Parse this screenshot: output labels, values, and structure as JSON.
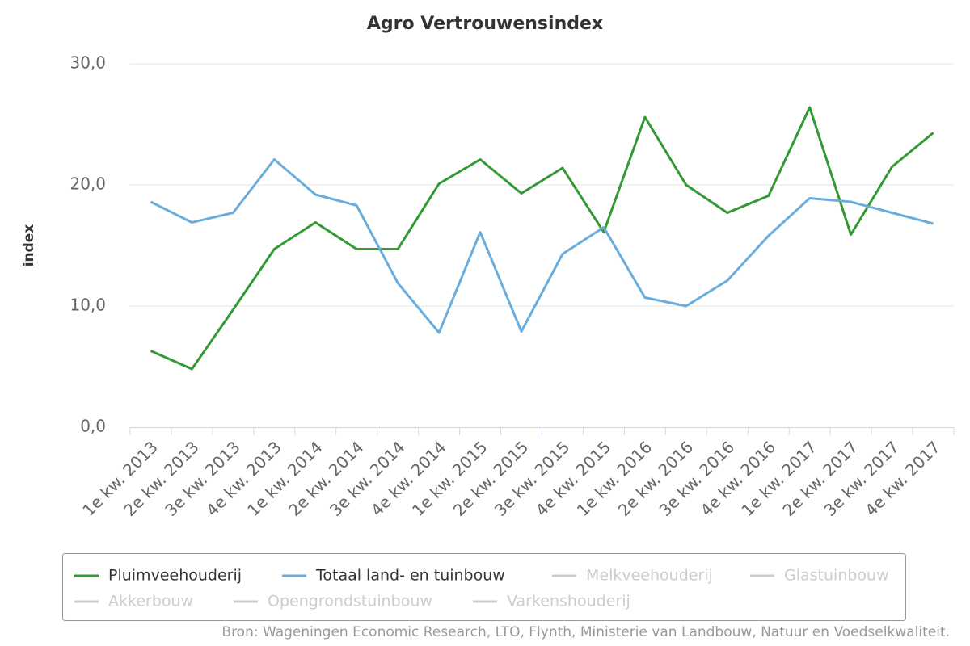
{
  "chart_data": {
    "type": "line",
    "title": "Agro Vertrouwensindex",
    "y_label": "index",
    "source": "Bron: Wageningen Economic Research, LTO, Flynth, Ministerie van Landbouw, Natuur en Voedselkwaliteit.",
    "categories": [
      "1e kw. 2013",
      "2e kw. 2013",
      "3e kw. 2013",
      "4e kw. 2013",
      "1e kw. 2014",
      "2e kw. 2014",
      "3e kw. 2014",
      "4e kw. 2014",
      "1e kw. 2015",
      "2e kw. 2015",
      "3e kw. 2015",
      "4e kw. 2015",
      "1e kw. 2016",
      "2e kw. 2016",
      "3e kw. 2016",
      "4e kw. 2016",
      "1e kw. 2017",
      "2e kw. 2017",
      "3e kw. 2017",
      "4e kw. 2017"
    ],
    "series": [
      {
        "name": "Pluimveehouderij",
        "color": "#339933",
        "visible": true,
        "values": [
          6.3,
          4.8,
          9.7,
          14.7,
          16.9,
          14.7,
          14.7,
          20.1,
          22.1,
          19.3,
          21.4,
          16.1,
          25.6,
          20.0,
          17.7,
          19.1,
          26.4,
          15.9,
          21.5,
          24.3
        ]
      },
      {
        "name": "Totaal land- en tuinbouw",
        "color": "#6aaddc",
        "visible": true,
        "values": [
          18.6,
          16.9,
          17.7,
          22.1,
          19.2,
          18.3,
          11.9,
          7.8,
          16.1,
          7.9,
          14.3,
          16.5,
          10.7,
          10.0,
          12.1,
          15.8,
          18.9,
          18.6,
          17.7,
          16.8
        ]
      },
      {
        "name": "Melkveehouderij",
        "color": "#cccccc",
        "visible": false,
        "values": [
          null,
          null,
          null,
          null,
          null,
          null,
          null,
          null,
          null,
          null,
          null,
          null,
          null,
          null,
          null,
          null,
          null,
          null,
          null,
          null
        ]
      },
      {
        "name": "Glastuinbouw",
        "color": "#cccccc",
        "visible": false,
        "values": [
          null,
          null,
          null,
          null,
          null,
          null,
          null,
          null,
          null,
          null,
          null,
          null,
          null,
          null,
          null,
          null,
          null,
          null,
          null,
          null
        ]
      },
      {
        "name": "Akkerbouw",
        "color": "#cccccc",
        "visible": false,
        "values": [
          null,
          null,
          null,
          null,
          null,
          null,
          null,
          null,
          null,
          null,
          null,
          null,
          null,
          null,
          null,
          null,
          null,
          null,
          null,
          null
        ]
      },
      {
        "name": "Opengrondstuinbouw",
        "color": "#cccccc",
        "visible": false,
        "values": [
          null,
          null,
          null,
          null,
          null,
          null,
          null,
          null,
          null,
          null,
          null,
          null,
          null,
          null,
          null,
          null,
          null,
          null,
          null,
          null
        ]
      },
      {
        "name": "Varkenshouderij",
        "color": "#cccccc",
        "visible": false,
        "values": [
          null,
          null,
          null,
          null,
          null,
          null,
          null,
          null,
          null,
          null,
          null,
          null,
          null,
          null,
          null,
          null,
          null,
          null,
          null,
          null
        ]
      }
    ],
    "ylim": [
      0,
      30
    ],
    "yticks": [
      {
        "value": 0,
        "label": "0,0"
      },
      {
        "value": 10,
        "label": "10,0"
      },
      {
        "value": 20,
        "label": "20,0"
      },
      {
        "value": 30,
        "label": "30,0"
      }
    ],
    "grid": true,
    "legend": "bottom"
  }
}
